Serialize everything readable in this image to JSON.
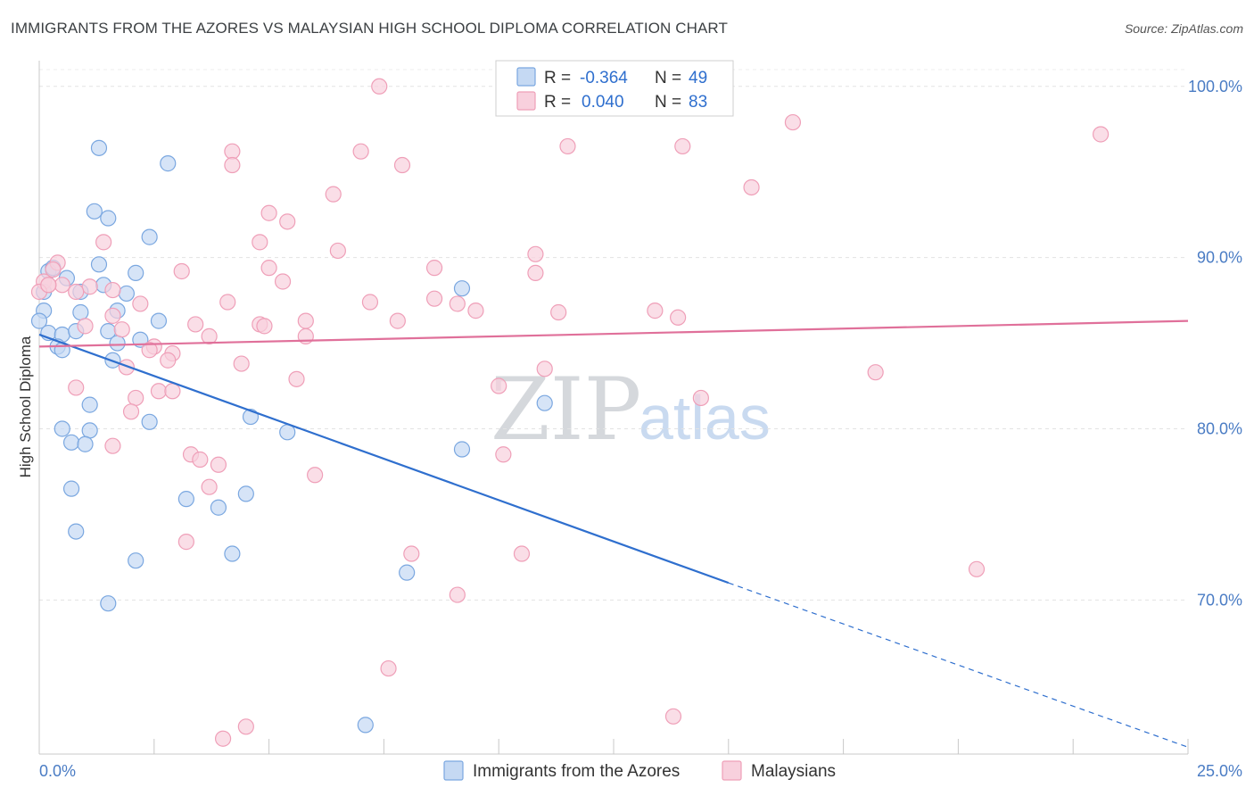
{
  "chart_data": {
    "type": "scatter",
    "title": "IMMIGRANTS FROM THE AZORES VS MALAYSIAN HIGH SCHOOL DIPLOMA CORRELATION CHART",
    "source": "Source: ZipAtlas.com",
    "xlabel": "",
    "ylabel": "High School Diploma",
    "xlim": [
      0,
      25
    ],
    "ylim": [
      61,
      101.5
    ],
    "x_tick_labels": [
      "0.0%",
      "25.0%"
    ],
    "y_ticks": [
      70,
      80,
      90,
      100
    ],
    "y_tick_labels": [
      "70.0%",
      "80.0%",
      "90.0%",
      "100.0%"
    ],
    "watermark": {
      "zip": "ZIP",
      "atlas": "atlas"
    },
    "legend": {
      "rows": [
        {
          "r_label": "R = ",
          "r_value": "-0.364",
          "n_label": "N = ",
          "n_value": "49"
        },
        {
          "r_label": "R = ",
          "r_value": "0.040",
          "n_label": "N = ",
          "n_value": "83"
        }
      ]
    },
    "series": [
      {
        "name": "Immigrants from the Azores",
        "color": "#7aa7e0",
        "fill": "#c5d9f3",
        "line_color": "#2f6fce",
        "trend": {
          "x0": 0,
          "y0": 85.5,
          "x1": 15,
          "y1": 71.0,
          "dash_to_x": 25,
          "dash_to_y": 61.4
        },
        "points": [
          [
            1.3,
            96.4
          ],
          [
            2.8,
            95.5
          ],
          [
            1.2,
            92.7
          ],
          [
            1.5,
            92.3
          ],
          [
            2.4,
            91.2
          ],
          [
            0.2,
            89.2
          ],
          [
            0.3,
            89.4
          ],
          [
            1.3,
            89.6
          ],
          [
            0.6,
            88.8
          ],
          [
            2.1,
            89.1
          ],
          [
            1.4,
            88.4
          ],
          [
            0.9,
            88.0
          ],
          [
            1.9,
            87.9
          ],
          [
            0.1,
            86.9
          ],
          [
            0.9,
            86.8
          ],
          [
            1.7,
            86.9
          ],
          [
            2.6,
            86.3
          ],
          [
            0.0,
            86.3
          ],
          [
            0.2,
            85.6
          ],
          [
            0.5,
            85.5
          ],
          [
            0.8,
            85.7
          ],
          [
            1.5,
            85.7
          ],
          [
            2.2,
            85.2
          ],
          [
            1.7,
            85.0
          ],
          [
            0.4,
            84.8
          ],
          [
            0.5,
            84.6
          ],
          [
            1.6,
            84.0
          ],
          [
            9.2,
            88.2
          ],
          [
            1.1,
            81.4
          ],
          [
            2.4,
            80.4
          ],
          [
            4.6,
            80.7
          ],
          [
            5.4,
            79.8
          ],
          [
            0.5,
            80.0
          ],
          [
            1.1,
            79.9
          ],
          [
            0.7,
            79.2
          ],
          [
            1.0,
            79.1
          ],
          [
            9.2,
            78.8
          ],
          [
            11.0,
            81.5
          ],
          [
            0.7,
            76.5
          ],
          [
            3.2,
            75.9
          ],
          [
            3.9,
            75.4
          ],
          [
            4.5,
            76.2
          ],
          [
            0.8,
            74.0
          ],
          [
            2.1,
            72.3
          ],
          [
            4.2,
            72.7
          ],
          [
            8.0,
            71.6
          ],
          [
            1.5,
            69.8
          ],
          [
            7.1,
            62.7
          ],
          [
            0.1,
            88.0
          ]
        ]
      },
      {
        "name": "Malaysians",
        "color": "#ef9fb8",
        "fill": "#f8d0dd",
        "line_color": "#e0709a",
        "trend": {
          "x0": 0,
          "y0": 84.8,
          "x1": 25,
          "y1": 86.3
        },
        "points": [
          [
            7.4,
            100.0
          ],
          [
            16.4,
            97.9
          ],
          [
            23.1,
            97.2
          ],
          [
            4.2,
            96.2
          ],
          [
            7.0,
            96.2
          ],
          [
            11.5,
            96.5
          ],
          [
            14.0,
            96.5
          ],
          [
            4.2,
            95.4
          ],
          [
            7.9,
            95.4
          ],
          [
            15.5,
            94.1
          ],
          [
            6.4,
            93.7
          ],
          [
            5.0,
            92.6
          ],
          [
            5.4,
            92.1
          ],
          [
            1.4,
            90.9
          ],
          [
            4.8,
            90.9
          ],
          [
            6.5,
            90.4
          ],
          [
            10.8,
            90.2
          ],
          [
            0.4,
            89.7
          ],
          [
            0.3,
            89.3
          ],
          [
            3.1,
            89.2
          ],
          [
            5.0,
            89.4
          ],
          [
            8.6,
            89.4
          ],
          [
            10.8,
            89.1
          ],
          [
            0.1,
            88.6
          ],
          [
            0.5,
            88.4
          ],
          [
            0.2,
            88.4
          ],
          [
            1.1,
            88.3
          ],
          [
            1.6,
            88.1
          ],
          [
            5.3,
            88.6
          ],
          [
            0.8,
            88.0
          ],
          [
            4.1,
            87.4
          ],
          [
            7.2,
            87.4
          ],
          [
            8.6,
            87.6
          ],
          [
            9.1,
            87.3
          ],
          [
            9.5,
            86.9
          ],
          [
            11.3,
            86.8
          ],
          [
            13.4,
            86.9
          ],
          [
            13.9,
            86.5
          ],
          [
            2.2,
            87.3
          ],
          [
            1.6,
            86.6
          ],
          [
            3.4,
            86.1
          ],
          [
            4.8,
            86.1
          ],
          [
            5.8,
            86.3
          ],
          [
            7.8,
            86.3
          ],
          [
            4.9,
            86.0
          ],
          [
            1.0,
            86.0
          ],
          [
            1.8,
            85.8
          ],
          [
            3.7,
            85.4
          ],
          [
            5.8,
            85.4
          ],
          [
            2.5,
            84.8
          ],
          [
            2.9,
            84.4
          ],
          [
            2.8,
            84.0
          ],
          [
            1.9,
            83.6
          ],
          [
            4.4,
            83.8
          ],
          [
            11.0,
            83.5
          ],
          [
            5.6,
            82.9
          ],
          [
            0.8,
            82.4
          ],
          [
            10.0,
            82.5
          ],
          [
            2.6,
            82.2
          ],
          [
            2.9,
            82.2
          ],
          [
            2.1,
            81.8
          ],
          [
            14.4,
            81.8
          ],
          [
            18.2,
            83.3
          ],
          [
            2.0,
            81.0
          ],
          [
            1.6,
            79.0
          ],
          [
            3.3,
            78.5
          ],
          [
            3.5,
            78.2
          ],
          [
            3.9,
            77.9
          ],
          [
            10.1,
            78.5
          ],
          [
            6.0,
            77.3
          ],
          [
            3.7,
            76.6
          ],
          [
            3.2,
            73.4
          ],
          [
            8.1,
            72.7
          ],
          [
            10.5,
            72.7
          ],
          [
            20.4,
            71.8
          ],
          [
            9.1,
            70.3
          ],
          [
            7.6,
            66.0
          ],
          [
            13.8,
            63.2
          ],
          [
            4.5,
            62.6
          ],
          [
            4.0,
            61.9
          ],
          [
            0.0,
            88.0
          ],
          [
            0.2,
            88.4
          ],
          [
            2.4,
            84.6
          ]
        ]
      }
    ]
  }
}
